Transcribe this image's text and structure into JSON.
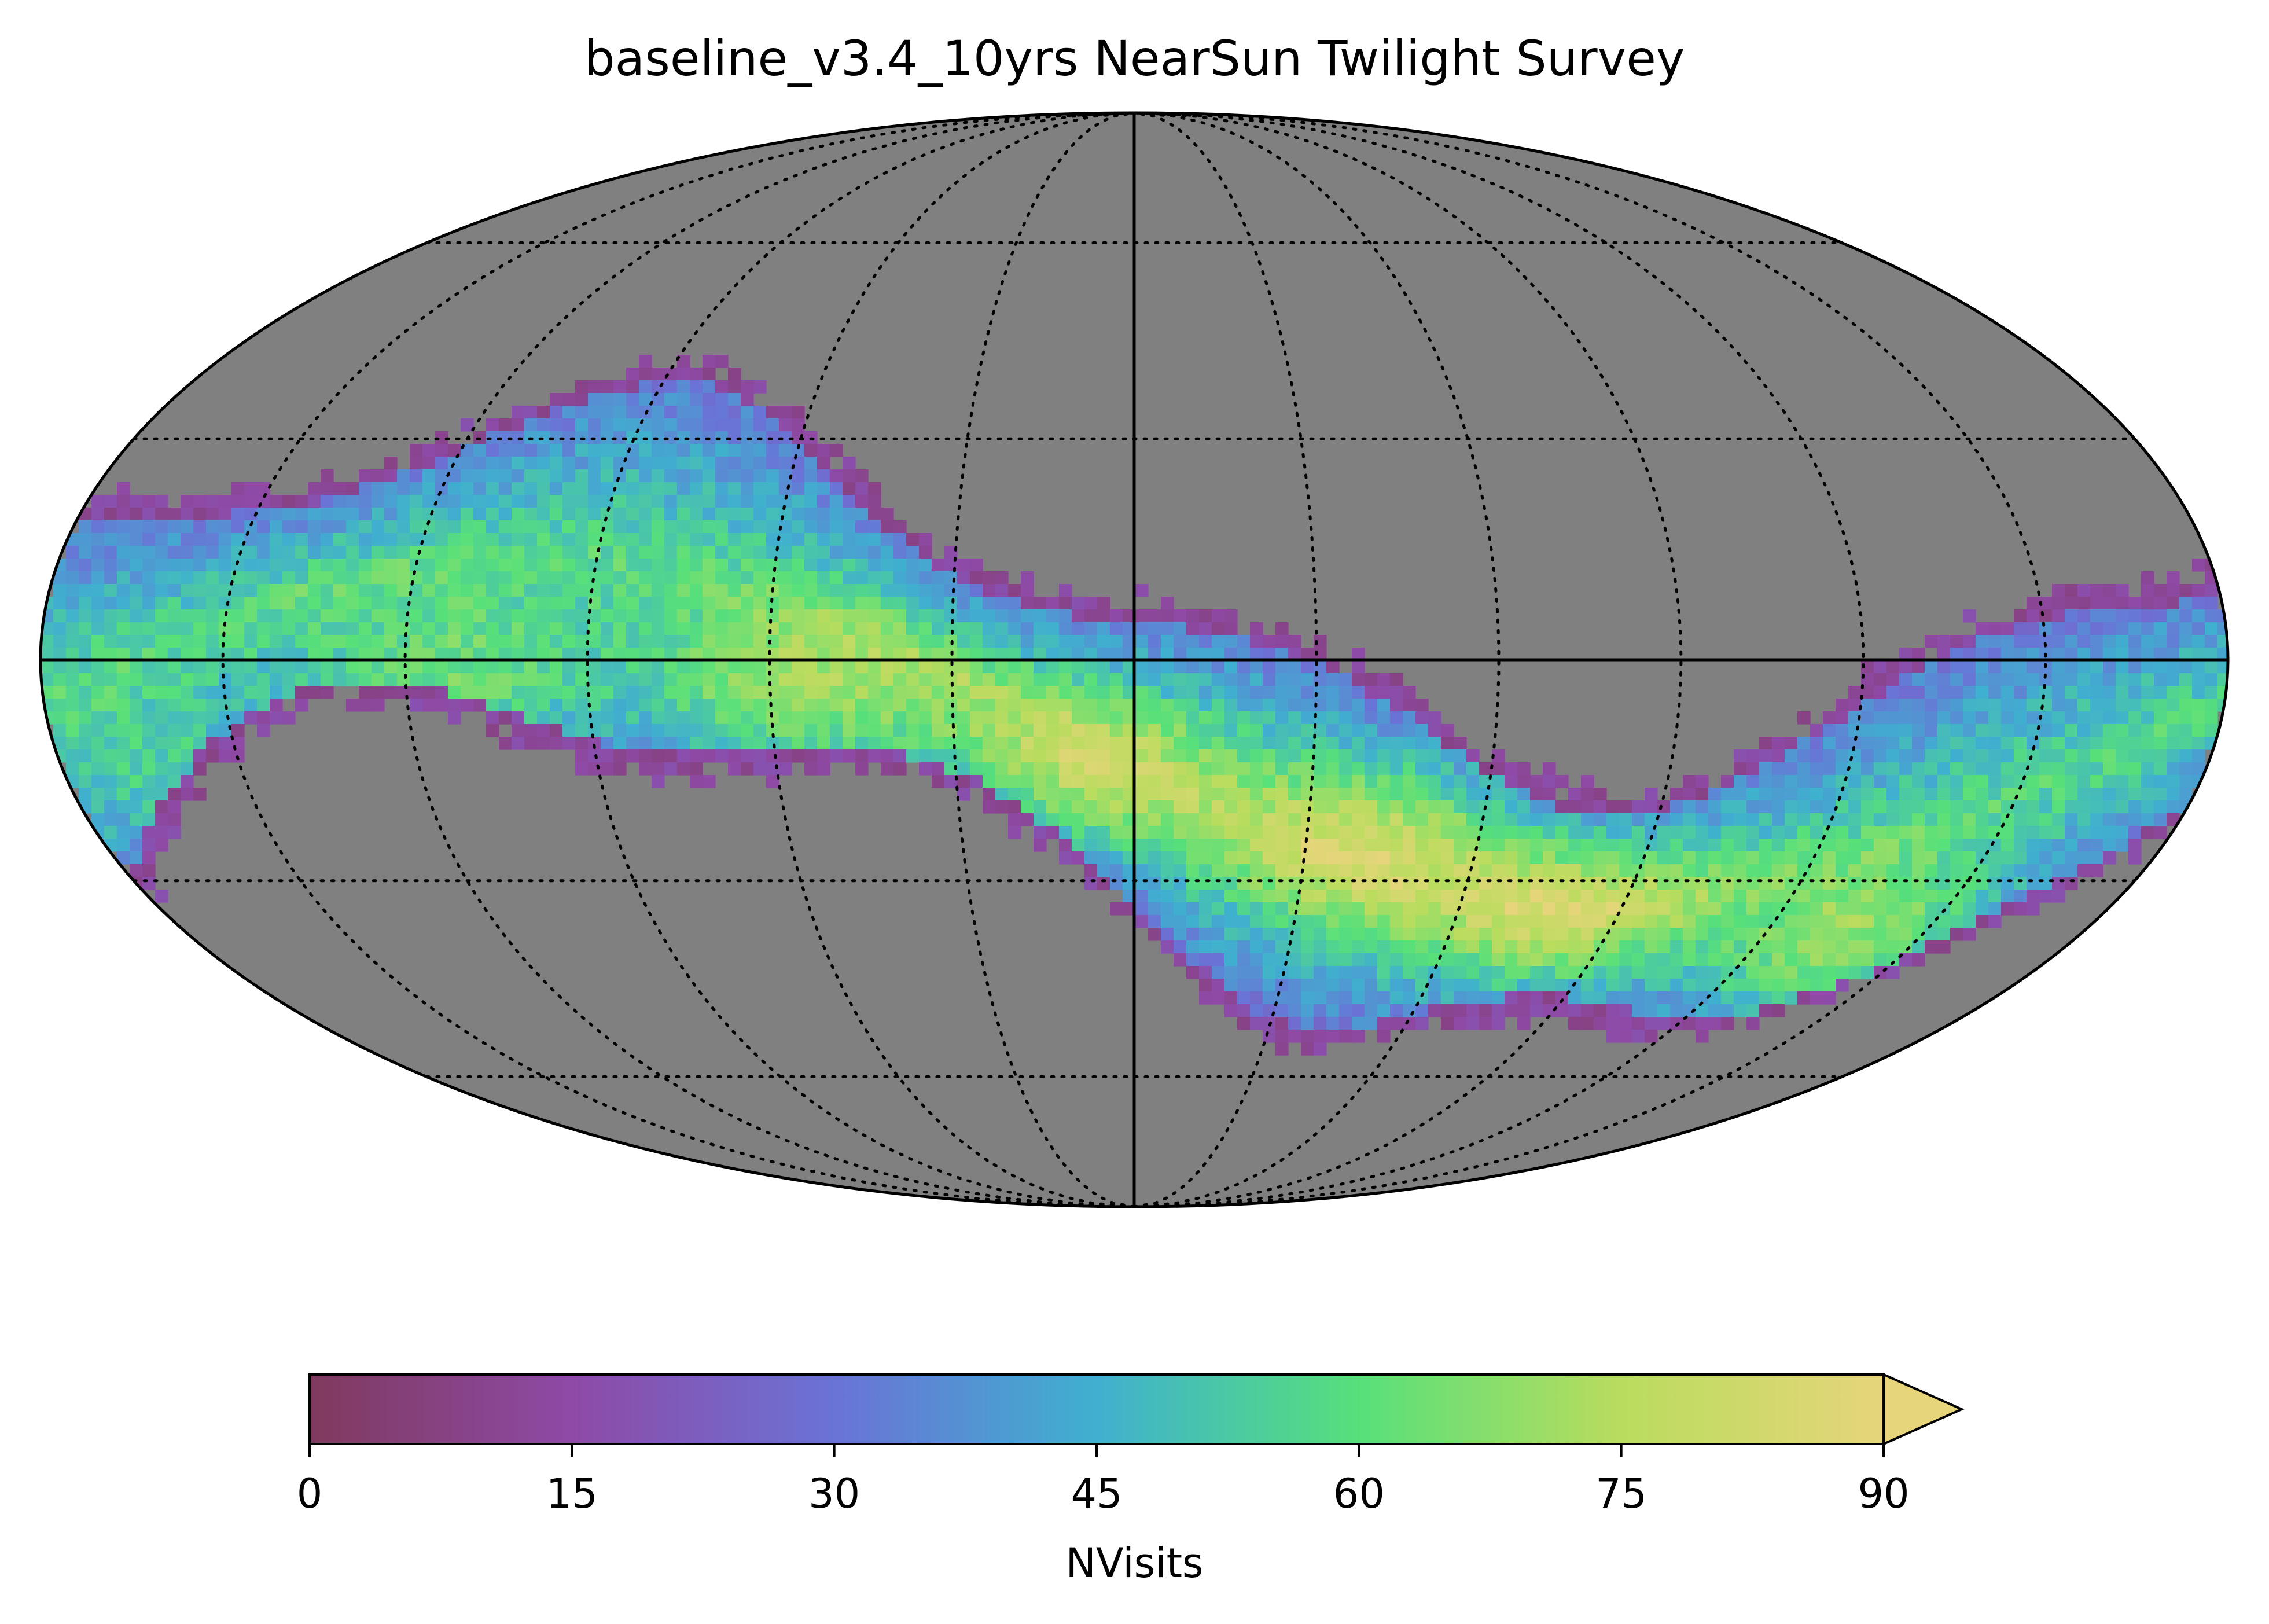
{
  "title": "baseline_v3.4_10yrs NearSun Twilight Survey",
  "map": {
    "projection": "mollweide",
    "background_color": "#808080",
    "graticule": "dotted",
    "band_description": "ecliptic band of visits, highest counts near the center-left and center-right"
  },
  "colorbar": {
    "label": "NVisits",
    "min": 0,
    "max": 90,
    "extend": "max",
    "ticks": [
      "0",
      "15",
      "30",
      "45",
      "60",
      "75",
      "90"
    ],
    "colormap": [
      "#7f3a5e",
      "#8e4aa6",
      "#6a73d6",
      "#3fb0cf",
      "#57e07a",
      "#b9dc5e",
      "#e6d57a"
    ]
  }
}
